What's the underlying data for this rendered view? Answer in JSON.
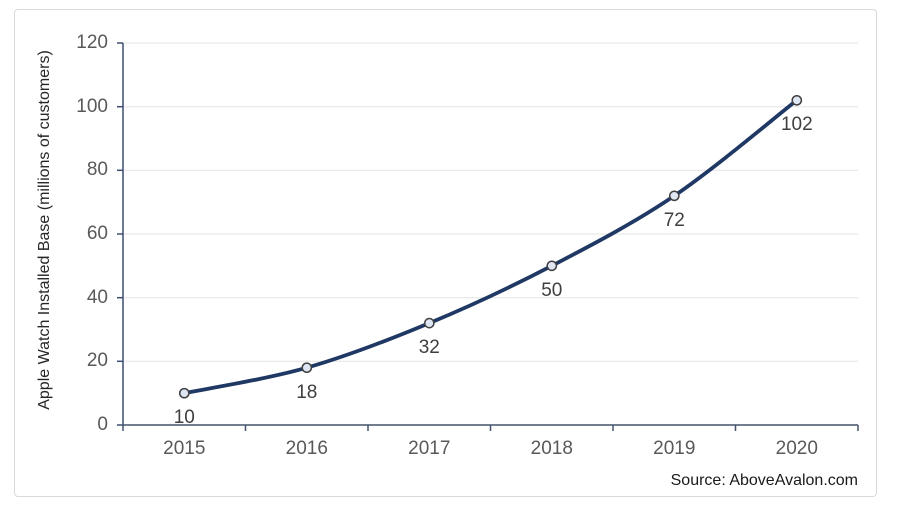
{
  "chart_data": {
    "type": "line",
    "categories": [
      "2015",
      "2016",
      "2017",
      "2018",
      "2019",
      "2020"
    ],
    "values": [
      10,
      18,
      32,
      50,
      72,
      102
    ],
    "data_labels": [
      "10",
      "18",
      "32",
      "50",
      "72",
      "102"
    ],
    "title": "",
    "xlabel": "",
    "ylabel": "Apple Watch Installed Base (millions of customers)",
    "ylim": [
      0,
      120
    ],
    "yticks": [
      0,
      20,
      40,
      60,
      80,
      100,
      120
    ],
    "grid": true,
    "legend": "none",
    "line_smooth": true,
    "colors": {
      "line": "#1f3864",
      "marker_fill": "#dde6f2",
      "marker_stroke": "#404040",
      "gridline": "#e3e3e3",
      "y_axis": "#3f4d73",
      "x_axis": "#44546a",
      "tick_label": "#595959",
      "data_label": "#3f3f3f",
      "frame_border": "#d9d9d9"
    }
  },
  "footer": {
    "source": "Source: AboveAvalon.com"
  }
}
